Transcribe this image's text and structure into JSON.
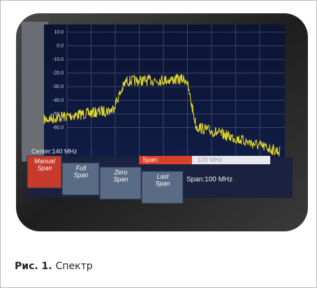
{
  "figure": {
    "screen": {
      "y_labels": [
        "10.0",
        "0.0",
        "-10.0",
        "-20.0",
        "-30.0",
        "-40.0",
        "-50.0",
        "-60.0"
      ],
      "center": "Center:140 MHz",
      "span_label": "Span:",
      "span_value": "100 MHz",
      "span_status": "Span:100 MHz",
      "softkeys": [
        [
          "Manual",
          "Span"
        ],
        [
          "Full",
          "Span"
        ],
        [
          "Zero",
          "Span"
        ],
        [
          "Last",
          "Span"
        ]
      ]
    },
    "caption": {
      "label": "Рис. 1.",
      "text": "Спектр"
    }
  }
}
